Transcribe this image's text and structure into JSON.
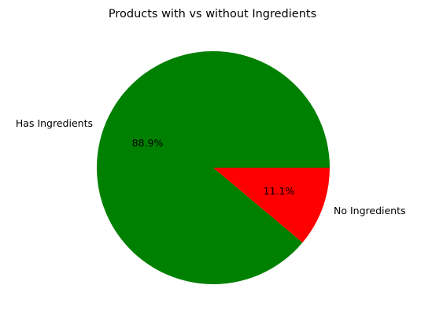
{
  "chart_data": {
    "type": "pie",
    "title": "Products with vs without Ingredients",
    "slices": [
      {
        "label": "Has Ingredients",
        "value": 88.9,
        "pct_label": "88.9%",
        "color": "#008000"
      },
      {
        "label": "No Ingredients",
        "value": 11.1,
        "pct_label": "11.1%",
        "color": "#ff0000"
      }
    ],
    "start_angle_deg": 0,
    "direction": "counterclockwise",
    "legend": "none"
  }
}
